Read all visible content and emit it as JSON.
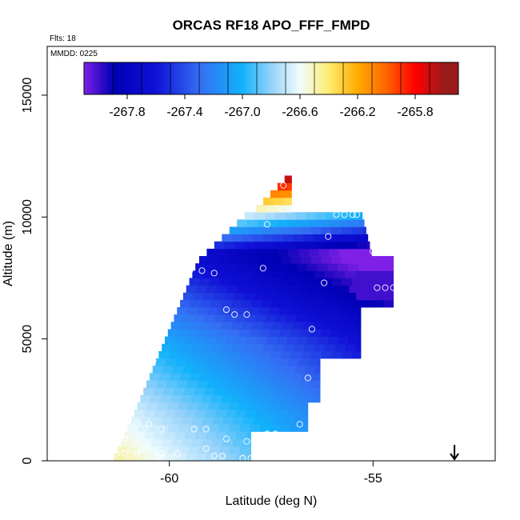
{
  "chart_data": {
    "type": "heatmap",
    "title": "ORCAS RF18 APO_FFF_FMPD",
    "annotations": {
      "flights": "Flts: 18",
      "date": "MMDD: 0225"
    },
    "xlabel": "Latitude (deg N)",
    "ylabel": "Altitude (m)",
    "xlim": [
      -63.0,
      -52.0
    ],
    "ylim": [
      0,
      17000
    ],
    "x_ticks": [
      -60,
      -55
    ],
    "x_tick_labels": [
      "-60",
      "-55"
    ],
    "y_ticks": [
      0,
      5000,
      10000,
      15000
    ],
    "y_tick_labels": [
      "0",
      "5000",
      "10000",
      "15000"
    ],
    "colorbar": {
      "range": [
        -268.1,
        -265.5
      ],
      "ticks": [
        -267.8,
        -267.4,
        -267.0,
        -266.6,
        -266.2,
        -265.8
      ],
      "tick_labels": [
        "-267.8",
        "-267.4",
        "-267.0",
        "-266.6",
        "-266.2",
        "-265.8"
      ],
      "colors": [
        "#7a1fe6",
        "#0000b5",
        "#0a0ad2",
        "#3a6cf0",
        "#12b2fb",
        "#9fd6fb",
        "#f0fcfe",
        "#ffe65a",
        "#ffa500",
        "#ff5a00",
        "#ff0000",
        "#9b1b1b"
      ]
    },
    "grid": false,
    "arrow_latitude": -53.0,
    "points": [
      [
        -61.3,
        300
      ],
      [
        -61.1,
        300
      ],
      [
        -60.8,
        300
      ],
      [
        -60.6,
        500
      ],
      [
        -60.2,
        300
      ],
      [
        -59.8,
        300
      ],
      [
        -59.1,
        500
      ],
      [
        -58.9,
        200
      ],
      [
        -58.7,
        200
      ],
      [
        -58.2,
        100
      ],
      [
        -58.0,
        100
      ],
      [
        -57.5,
        700
      ],
      [
        -57.1,
        300
      ],
      [
        -57.0,
        100
      ],
      [
        -61.1,
        900
      ],
      [
        -61.0,
        1700
      ],
      [
        -60.8,
        1500
      ],
      [
        -60.5,
        1500
      ],
      [
        -60.2,
        1300
      ],
      [
        -59.4,
        1300
      ],
      [
        -59.1,
        1300
      ],
      [
        -58.6,
        900
      ],
      [
        -58.1,
        800
      ],
      [
        -57.6,
        1100
      ],
      [
        -57.4,
        1100
      ],
      [
        -56.8,
        1500
      ],
      [
        -60.9,
        2500
      ],
      [
        -60.7,
        3300
      ],
      [
        -60.4,
        4100
      ],
      [
        -60.2,
        5000
      ],
      [
        -60.1,
        6000
      ],
      [
        -59.8,
        7000
      ],
      [
        -59.5,
        7800
      ],
      [
        -59.2,
        7800
      ],
      [
        -58.9,
        7700
      ],
      [
        -58.6,
        6200
      ],
      [
        -58.4,
        6000
      ],
      [
        -58.1,
        6000
      ],
      [
        -57.7,
        7900
      ],
      [
        -56.6,
        3400
      ],
      [
        -56.5,
        5400
      ],
      [
        -56.2,
        7300
      ],
      [
        -56.1,
        9200
      ],
      [
        -55.9,
        10100
      ],
      [
        -55.7,
        10100
      ],
      [
        -55.5,
        10100
      ],
      [
        -55.4,
        10100
      ],
      [
        -55.0,
        8600
      ],
      [
        -54.9,
        7100
      ],
      [
        -54.7,
        7100
      ],
      [
        -54.5,
        7100
      ],
      [
        -57.2,
        11300
      ],
      [
        -57.6,
        9700
      ]
    ]
  }
}
